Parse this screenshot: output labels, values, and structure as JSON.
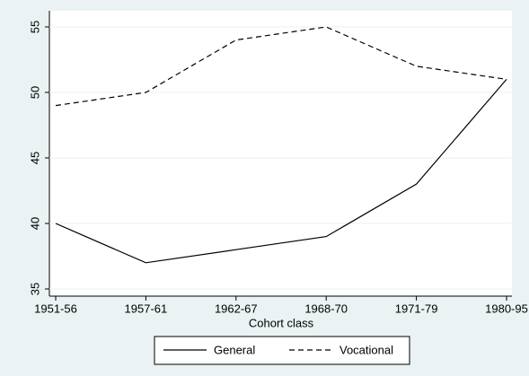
{
  "chart_data": {
    "type": "line",
    "x_label": "Cohort class",
    "categories": [
      "1951-56",
      "1957-61",
      "1962-67",
      "1968-70",
      "1971-79",
      "1980-95"
    ],
    "series": [
      {
        "name": "General",
        "color": "#000000",
        "linestyle": "solid",
        "values": [
          40,
          37,
          38,
          39,
          43,
          51
        ]
      },
      {
        "name": "Vocational",
        "color": "#000000",
        "linestyle": "dashed",
        "values": [
          49,
          50,
          54,
          55,
          52,
          51
        ]
      }
    ],
    "ylim": [
      35,
      55
    ],
    "yticks": [
      35,
      40,
      45,
      50,
      55
    ],
    "grid": true,
    "legend": "bottom"
  }
}
